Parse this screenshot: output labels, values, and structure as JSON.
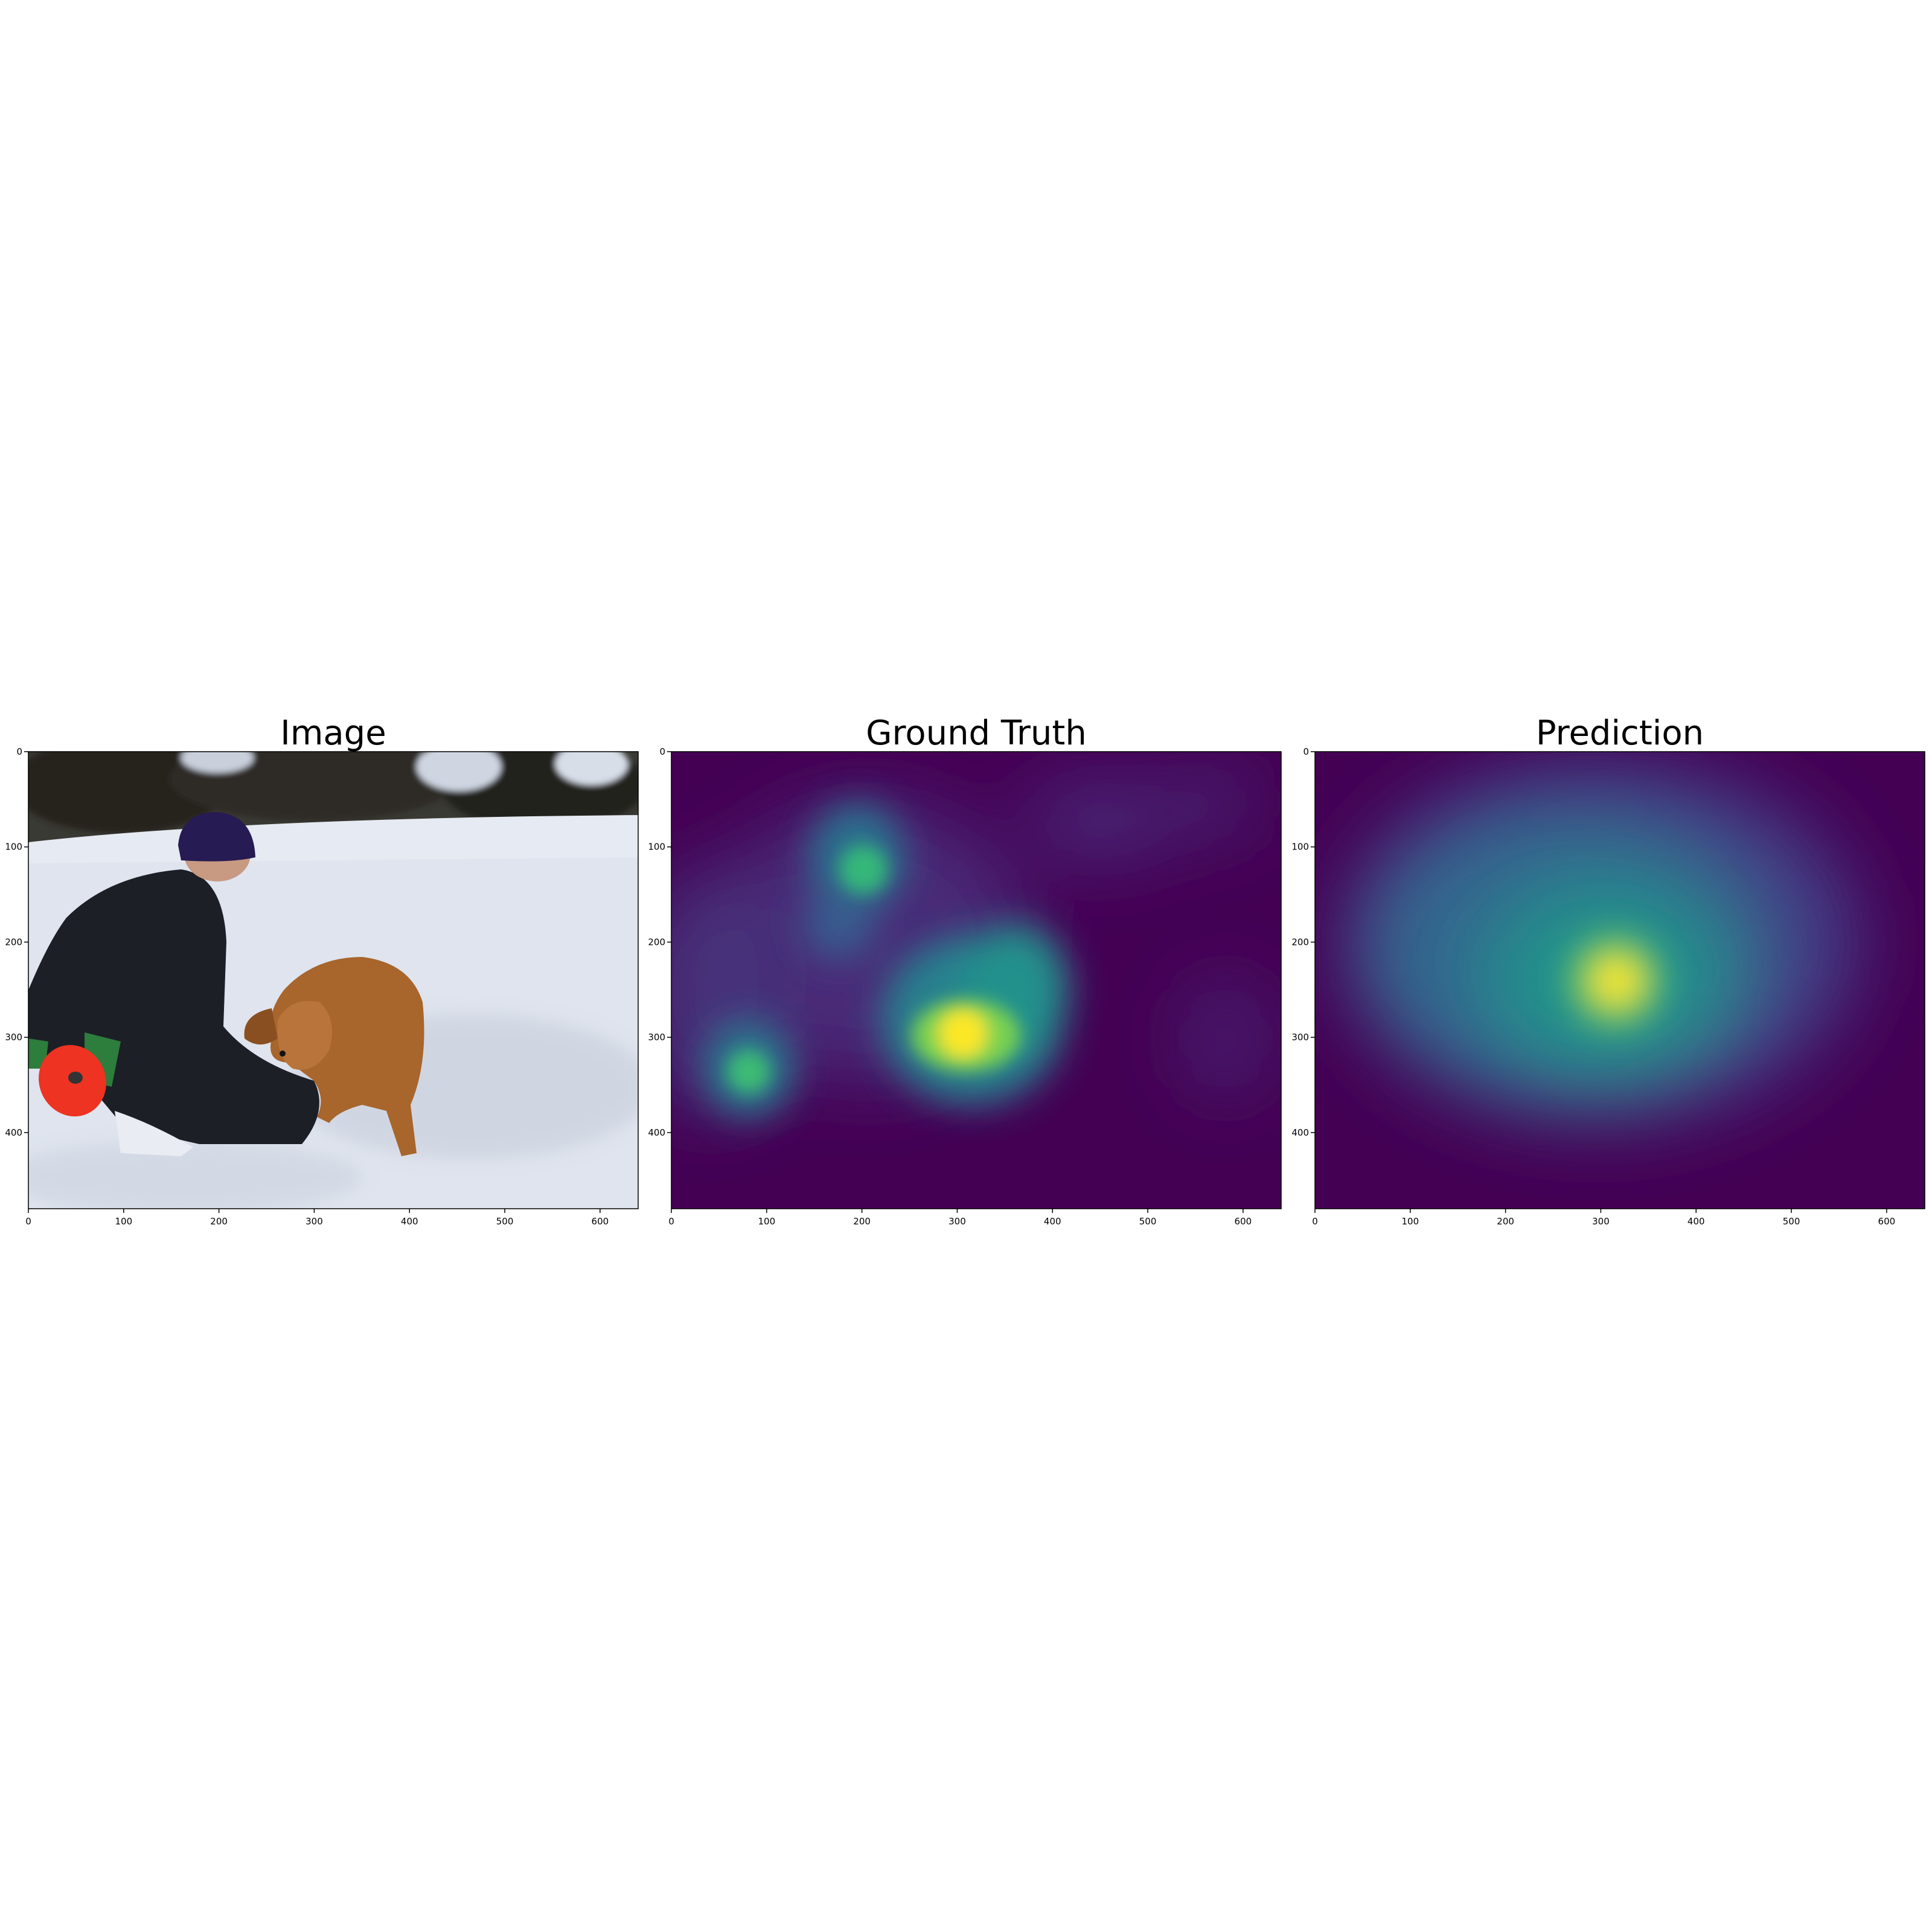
{
  "colors": {
    "viridis_low": "#440154",
    "viridis_mid": "#21918c",
    "viridis_high": "#fde725",
    "snow": "#dfe4ee",
    "frisbee": "#ee3322",
    "jacket": "#1c1f26",
    "dog": "#a8652c"
  },
  "chart_data": [
    {
      "type": "image",
      "title": "Image",
      "xlim": [
        0,
        640
      ],
      "ylim": [
        480,
        0
      ],
      "x_ticks": [
        0,
        100,
        200,
        300,
        400,
        500,
        600
      ],
      "y_ticks": [
        0,
        100,
        200,
        300,
        400
      ],
      "x_tick_labels": [
        "0",
        "100",
        "200",
        "300",
        "400",
        "500",
        "600"
      ],
      "y_tick_labels": [
        "0",
        "100",
        "200",
        "300",
        "400"
      ]
    },
    {
      "type": "heatmap",
      "title": "Ground Truth",
      "colormap": "viridis",
      "xlim": [
        0,
        640
      ],
      "ylim": [
        480,
        0
      ],
      "x_ticks": [
        0,
        100,
        200,
        300,
        400,
        500,
        600
      ],
      "y_ticks": [
        0,
        100,
        200,
        300,
        400
      ],
      "x_tick_labels": [
        "0",
        "100",
        "200",
        "300",
        "400",
        "500",
        "600"
      ],
      "y_tick_labels": [
        "0",
        "100",
        "200",
        "300",
        "400"
      ],
      "hotspots": [
        {
          "x": 300,
          "y": 300,
          "intensity": 1.0
        },
        {
          "x": 200,
          "y": 125,
          "intensity": 0.6
        },
        {
          "x": 55,
          "y": 345,
          "intensity": 0.55
        },
        {
          "x": 340,
          "y": 230,
          "intensity": 0.5
        }
      ]
    },
    {
      "type": "heatmap",
      "title": "Prediction",
      "colormap": "viridis",
      "xlim": [
        0,
        640
      ],
      "ylim": [
        480,
        0
      ],
      "x_ticks": [
        0,
        100,
        200,
        300,
        400,
        500,
        600
      ],
      "y_ticks": [
        0,
        100,
        200,
        300,
        400
      ],
      "x_tick_labels": [
        "0",
        "100",
        "200",
        "300",
        "400",
        "500",
        "600"
      ],
      "y_tick_labels": [
        "0",
        "100",
        "200",
        "300",
        "400"
      ],
      "hotspots": [
        {
          "x": 315,
          "y": 240,
          "intensity": 1.0
        }
      ]
    }
  ]
}
